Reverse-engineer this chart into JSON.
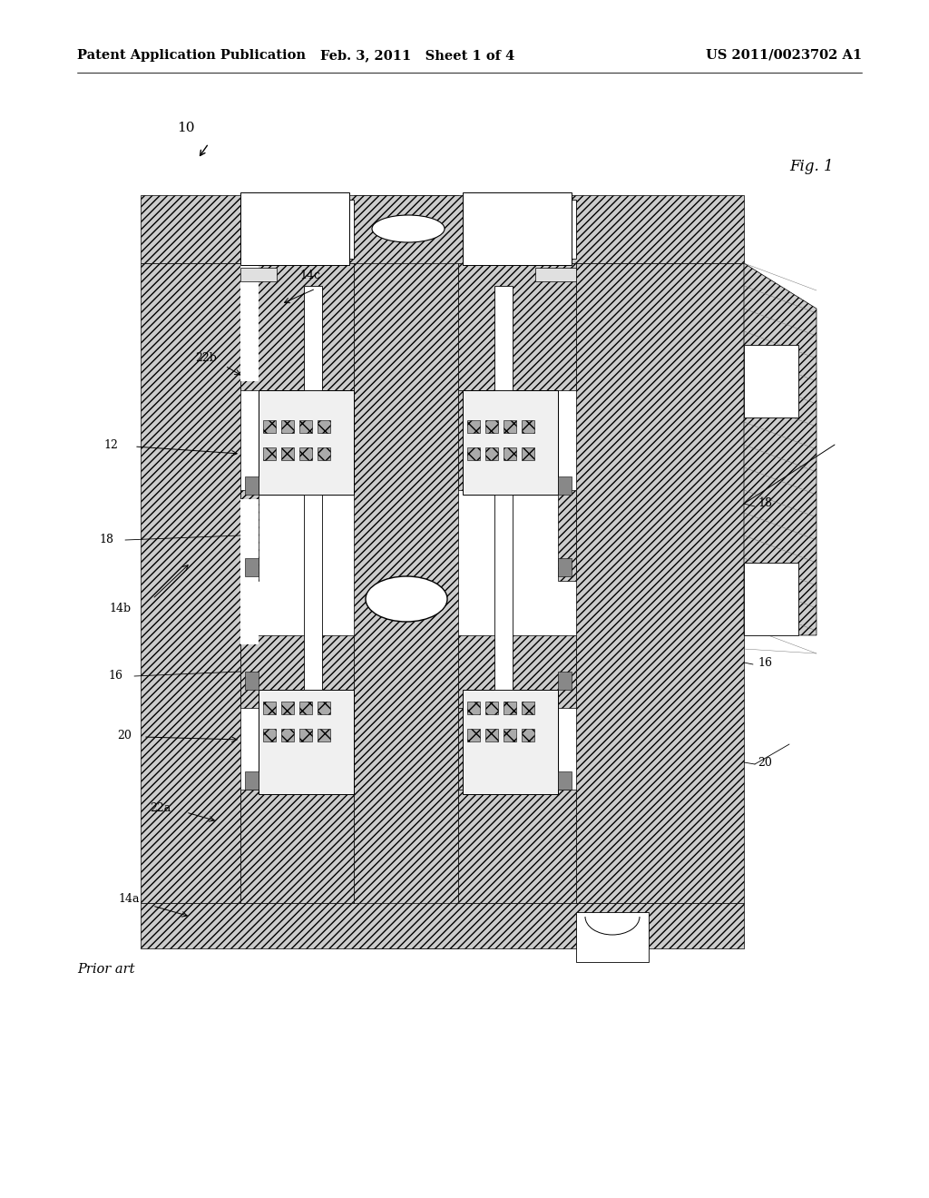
{
  "bg": "#ffffff",
  "header_left": "Patent Application Publication",
  "header_mid": "Feb. 3, 2011   Sheet 1 of 4",
  "header_right": "US 2011/0023702 A1",
  "header_fs": 10.5,
  "fig_label": "Fig. 1",
  "prior_art": "Prior art",
  "hatch_color": "#000000",
  "hatch_fc": "#d8d8d8",
  "line_color": "#000000",
  "lw": 0.7
}
